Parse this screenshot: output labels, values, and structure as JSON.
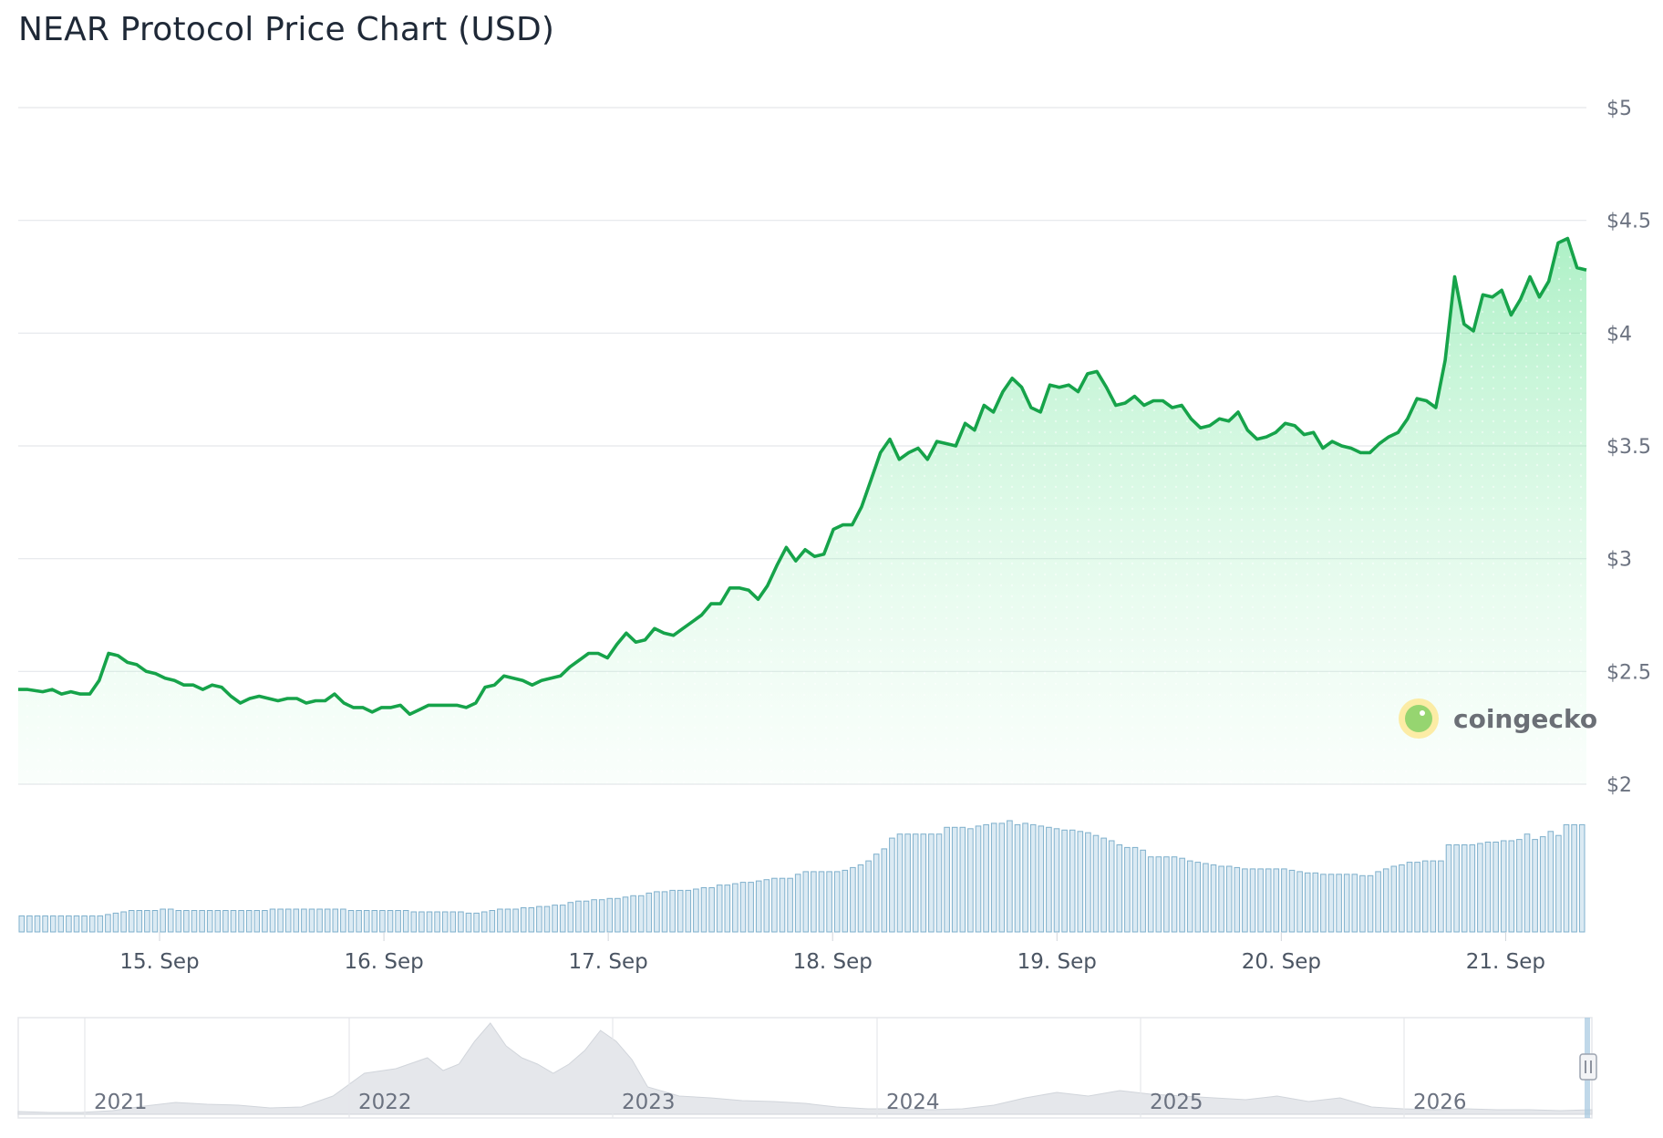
{
  "title": "NEAR Protocol Price Chart (USD)",
  "watermark": {
    "text": "coingecko",
    "icon": "gecko-logo-icon"
  },
  "colors": {
    "line": "#16a34a",
    "area": "#86efac",
    "volume": "#7fb0cc",
    "grid": "#e5e7eb",
    "navigator": "#d1d5db"
  },
  "chart_data": {
    "type": "line",
    "title": "NEAR Protocol Price Chart (USD)",
    "xlabel": "",
    "ylabel": "",
    "y_unit": "USD",
    "ylim": [
      2,
      5
    ],
    "y_ticks": [
      {
        "value": 5,
        "label": "$5"
      },
      {
        "value": 4.5,
        "label": "$4.5"
      },
      {
        "value": 4,
        "label": "$4"
      },
      {
        "value": 3.5,
        "label": "$3.5"
      },
      {
        "value": 3,
        "label": "$3"
      },
      {
        "value": 2.5,
        "label": "$2.5"
      },
      {
        "value": 2,
        "label": "$2"
      }
    ],
    "x_ticks": [
      {
        "day": 15,
        "label": "15. Sep"
      },
      {
        "day": 16,
        "label": "16. Sep"
      },
      {
        "day": 17,
        "label": "17. Sep"
      },
      {
        "day": 18,
        "label": "18. Sep"
      },
      {
        "day": 19,
        "label": "19. Sep"
      },
      {
        "day": 20,
        "label": "20. Sep"
      },
      {
        "day": 21,
        "label": "21. Sep"
      }
    ],
    "xlim_days": [
      14.37,
      21.36
    ],
    "grid": true,
    "legend": "none",
    "series": [
      {
        "type": "line",
        "points": [
          [
            14.37,
            2.42
          ],
          [
            14.42,
            2.42
          ],
          [
            14.5,
            2.41
          ],
          [
            14.55,
            2.42
          ],
          [
            14.6,
            2.4
          ],
          [
            14.65,
            2.41
          ],
          [
            14.7,
            2.4
          ],
          [
            14.75,
            2.4
          ],
          [
            14.8,
            2.46
          ],
          [
            14.85,
            2.58
          ],
          [
            14.9,
            2.57
          ],
          [
            14.95,
            2.54
          ],
          [
            15.0,
            2.53
          ],
          [
            15.05,
            2.5
          ],
          [
            15.1,
            2.49
          ],
          [
            15.15,
            2.47
          ],
          [
            15.2,
            2.46
          ],
          [
            15.25,
            2.44
          ],
          [
            15.3,
            2.44
          ],
          [
            15.35,
            2.42
          ],
          [
            15.4,
            2.44
          ],
          [
            15.45,
            2.43
          ],
          [
            15.5,
            2.39
          ],
          [
            15.55,
            2.36
          ],
          [
            15.6,
            2.38
          ],
          [
            15.65,
            2.39
          ],
          [
            15.7,
            2.38
          ],
          [
            15.75,
            2.37
          ],
          [
            15.8,
            2.38
          ],
          [
            15.85,
            2.38
          ],
          [
            15.9,
            2.36
          ],
          [
            15.95,
            2.37
          ],
          [
            16.0,
            2.37
          ],
          [
            16.05,
            2.4
          ],
          [
            16.1,
            2.36
          ],
          [
            16.15,
            2.34
          ],
          [
            16.2,
            2.34
          ],
          [
            16.25,
            2.32
          ],
          [
            16.3,
            2.34
          ],
          [
            16.35,
            2.34
          ],
          [
            16.4,
            2.35
          ],
          [
            16.45,
            2.31
          ],
          [
            16.5,
            2.33
          ],
          [
            16.55,
            2.35
          ],
          [
            16.6,
            2.35
          ],
          [
            16.65,
            2.35
          ],
          [
            16.7,
            2.35
          ],
          [
            16.75,
            2.34
          ],
          [
            16.8,
            2.36
          ],
          [
            16.85,
            2.43
          ],
          [
            16.9,
            2.44
          ],
          [
            16.95,
            2.48
          ],
          [
            17.0,
            2.47
          ],
          [
            17.05,
            2.46
          ],
          [
            17.1,
            2.44
          ],
          [
            17.15,
            2.46
          ],
          [
            17.2,
            2.47
          ],
          [
            17.25,
            2.48
          ],
          [
            17.3,
            2.52
          ],
          [
            17.35,
            2.55
          ],
          [
            17.4,
            2.58
          ],
          [
            17.45,
            2.58
          ],
          [
            17.5,
            2.56
          ],
          [
            17.55,
            2.62
          ],
          [
            17.6,
            2.67
          ],
          [
            17.65,
            2.63
          ],
          [
            17.7,
            2.64
          ],
          [
            17.75,
            2.69
          ],
          [
            17.8,
            2.67
          ],
          [
            17.85,
            2.66
          ],
          [
            17.9,
            2.69
          ],
          [
            17.95,
            2.72
          ],
          [
            18.0,
            2.75
          ],
          [
            18.05,
            2.8
          ],
          [
            18.1,
            2.8
          ],
          [
            18.15,
            2.87
          ],
          [
            18.2,
            2.87
          ],
          [
            18.25,
            2.86
          ],
          [
            18.3,
            2.82
          ],
          [
            18.35,
            2.88
          ],
          [
            18.4,
            2.97
          ],
          [
            18.45,
            3.05
          ],
          [
            18.5,
            2.99
          ],
          [
            18.55,
            3.04
          ],
          [
            18.6,
            3.01
          ],
          [
            18.65,
            3.02
          ],
          [
            18.7,
            3.13
          ],
          [
            18.75,
            3.15
          ],
          [
            18.8,
            3.15
          ],
          [
            18.85,
            3.23
          ],
          [
            18.9,
            3.35
          ],
          [
            18.95,
            3.47
          ],
          [
            19.0,
            3.53
          ],
          [
            19.05,
            3.44
          ],
          [
            19.1,
            3.47
          ],
          [
            19.15,
            3.49
          ],
          [
            19.2,
            3.44
          ],
          [
            19.25,
            3.52
          ],
          [
            19.3,
            3.51
          ],
          [
            19.35,
            3.5
          ],
          [
            19.4,
            3.6
          ],
          [
            19.45,
            3.57
          ],
          [
            19.5,
            3.68
          ],
          [
            19.55,
            3.65
          ],
          [
            19.6,
            3.74
          ],
          [
            19.65,
            3.8
          ],
          [
            19.7,
            3.76
          ],
          [
            19.75,
            3.67
          ],
          [
            19.8,
            3.65
          ],
          [
            19.85,
            3.77
          ],
          [
            19.9,
            3.76
          ],
          [
            19.95,
            3.77
          ],
          [
            20.0,
            3.74
          ],
          [
            20.05,
            3.82
          ],
          [
            20.1,
            3.83
          ],
          [
            20.15,
            3.76
          ],
          [
            20.2,
            3.68
          ],
          [
            20.25,
            3.69
          ],
          [
            20.3,
            3.72
          ],
          [
            20.35,
            3.68
          ],
          [
            20.4,
            3.7
          ],
          [
            20.45,
            3.7
          ],
          [
            20.5,
            3.67
          ],
          [
            20.55,
            3.68
          ],
          [
            20.6,
            3.62
          ],
          [
            20.65,
            3.58
          ],
          [
            20.7,
            3.59
          ],
          [
            20.75,
            3.62
          ],
          [
            20.8,
            3.61
          ],
          [
            20.85,
            3.65
          ],
          [
            20.9,
            3.57
          ],
          [
            20.95,
            3.53
          ],
          [
            21.0,
            3.54
          ],
          [
            21.05,
            3.56
          ],
          [
            21.1,
            3.6
          ],
          [
            21.15,
            3.59
          ],
          [
            21.2,
            3.55
          ],
          [
            21.25,
            3.56
          ],
          [
            21.3,
            3.49
          ],
          [
            21.35,
            3.52
          ],
          [
            21.4,
            3.5
          ],
          [
            21.45,
            3.49
          ],
          [
            21.5,
            3.47
          ],
          [
            21.55,
            3.47
          ],
          [
            21.6,
            3.51
          ],
          [
            21.65,
            3.54
          ],
          [
            21.7,
            3.56
          ],
          [
            21.75,
            3.62
          ],
          [
            21.8,
            3.71
          ],
          [
            21.85,
            3.7
          ],
          [
            21.9,
            3.67
          ],
          [
            21.95,
            3.88
          ],
          [
            22.0,
            4.25
          ],
          [
            22.05,
            4.04
          ],
          [
            22.1,
            4.01
          ],
          [
            22.15,
            4.17
          ],
          [
            22.2,
            4.16
          ],
          [
            22.25,
            4.19
          ],
          [
            22.3,
            4.08
          ],
          [
            22.35,
            4.15
          ],
          [
            22.4,
            4.25
          ],
          [
            22.45,
            4.16
          ],
          [
            22.5,
            4.23
          ],
          [
            22.55,
            4.4
          ],
          [
            22.6,
            4.42
          ],
          [
            22.65,
            4.29
          ],
          [
            22.7,
            4.28
          ]
        ]
      }
    ],
    "volume_series": {
      "type": "bar",
      "values": [
        1.2,
        1.2,
        1.2,
        1.2,
        1.2,
        1.2,
        1.2,
        1.2,
        1.2,
        1.2,
        1.2,
        1.3,
        1.4,
        1.5,
        1.6,
        1.6,
        1.6,
        1.6,
        1.7,
        1.7,
        1.6,
        1.6,
        1.6,
        1.6,
        1.6,
        1.6,
        1.6,
        1.6,
        1.6,
        1.6,
        1.6,
        1.6,
        1.7,
        1.7,
        1.7,
        1.7,
        1.7,
        1.7,
        1.7,
        1.7,
        1.7,
        1.7,
        1.6,
        1.6,
        1.6,
        1.6,
        1.6,
        1.6,
        1.6,
        1.6,
        1.5,
        1.5,
        1.5,
        1.5,
        1.5,
        1.5,
        1.5,
        1.4,
        1.4,
        1.5,
        1.6,
        1.7,
        1.7,
        1.7,
        1.8,
        1.8,
        1.9,
        1.9,
        2.0,
        2.0,
        2.2,
        2.3,
        2.3,
        2.4,
        2.4,
        2.5,
        2.5,
        2.6,
        2.7,
        2.7,
        2.9,
        3.0,
        3.0,
        3.1,
        3.1,
        3.1,
        3.2,
        3.3,
        3.3,
        3.5,
        3.5,
        3.6,
        3.7,
        3.7,
        3.8,
        3.9,
        4.0,
        4.0,
        4.0,
        4.3,
        4.5,
        4.5,
        4.5,
        4.5,
        4.5,
        4.6,
        4.8,
        5.0,
        5.3,
        5.8,
        6.2,
        7.0,
        7.3,
        7.3,
        7.3,
        7.3,
        7.3,
        7.3,
        7.8,
        7.8,
        7.8,
        7.7,
        7.9,
        8.0,
        8.1,
        8.1,
        8.3,
        8.0,
        8.1,
        8.0,
        7.9,
        7.8,
        7.7,
        7.6,
        7.6,
        7.5,
        7.4,
        7.2,
        7.0,
        6.8,
        6.5,
        6.3,
        6.3,
        6.1,
        5.6,
        5.6,
        5.6,
        5.6,
        5.5,
        5.3,
        5.2,
        5.1,
        5.0,
        4.9,
        4.9,
        4.8,
        4.7,
        4.7,
        4.7,
        4.7,
        4.7,
        4.7,
        4.6,
        4.5,
        4.4,
        4.4,
        4.3,
        4.3,
        4.3,
        4.3,
        4.3,
        4.2,
        4.2,
        4.5,
        4.7,
        4.9,
        5.0,
        5.2,
        5.2,
        5.3,
        5.3,
        5.3,
        6.5,
        6.5,
        6.5,
        6.5,
        6.6,
        6.7,
        6.7,
        6.8,
        6.8,
        6.9,
        7.3,
        6.9,
        7.1,
        7.5,
        7.2,
        8.0,
        8.0,
        8.0
      ]
    }
  },
  "navigator": {
    "years": [
      "2021",
      "2022",
      "2023",
      "2024",
      "2025",
      "2026"
    ],
    "handle_icon": "drag-handle-icon"
  }
}
